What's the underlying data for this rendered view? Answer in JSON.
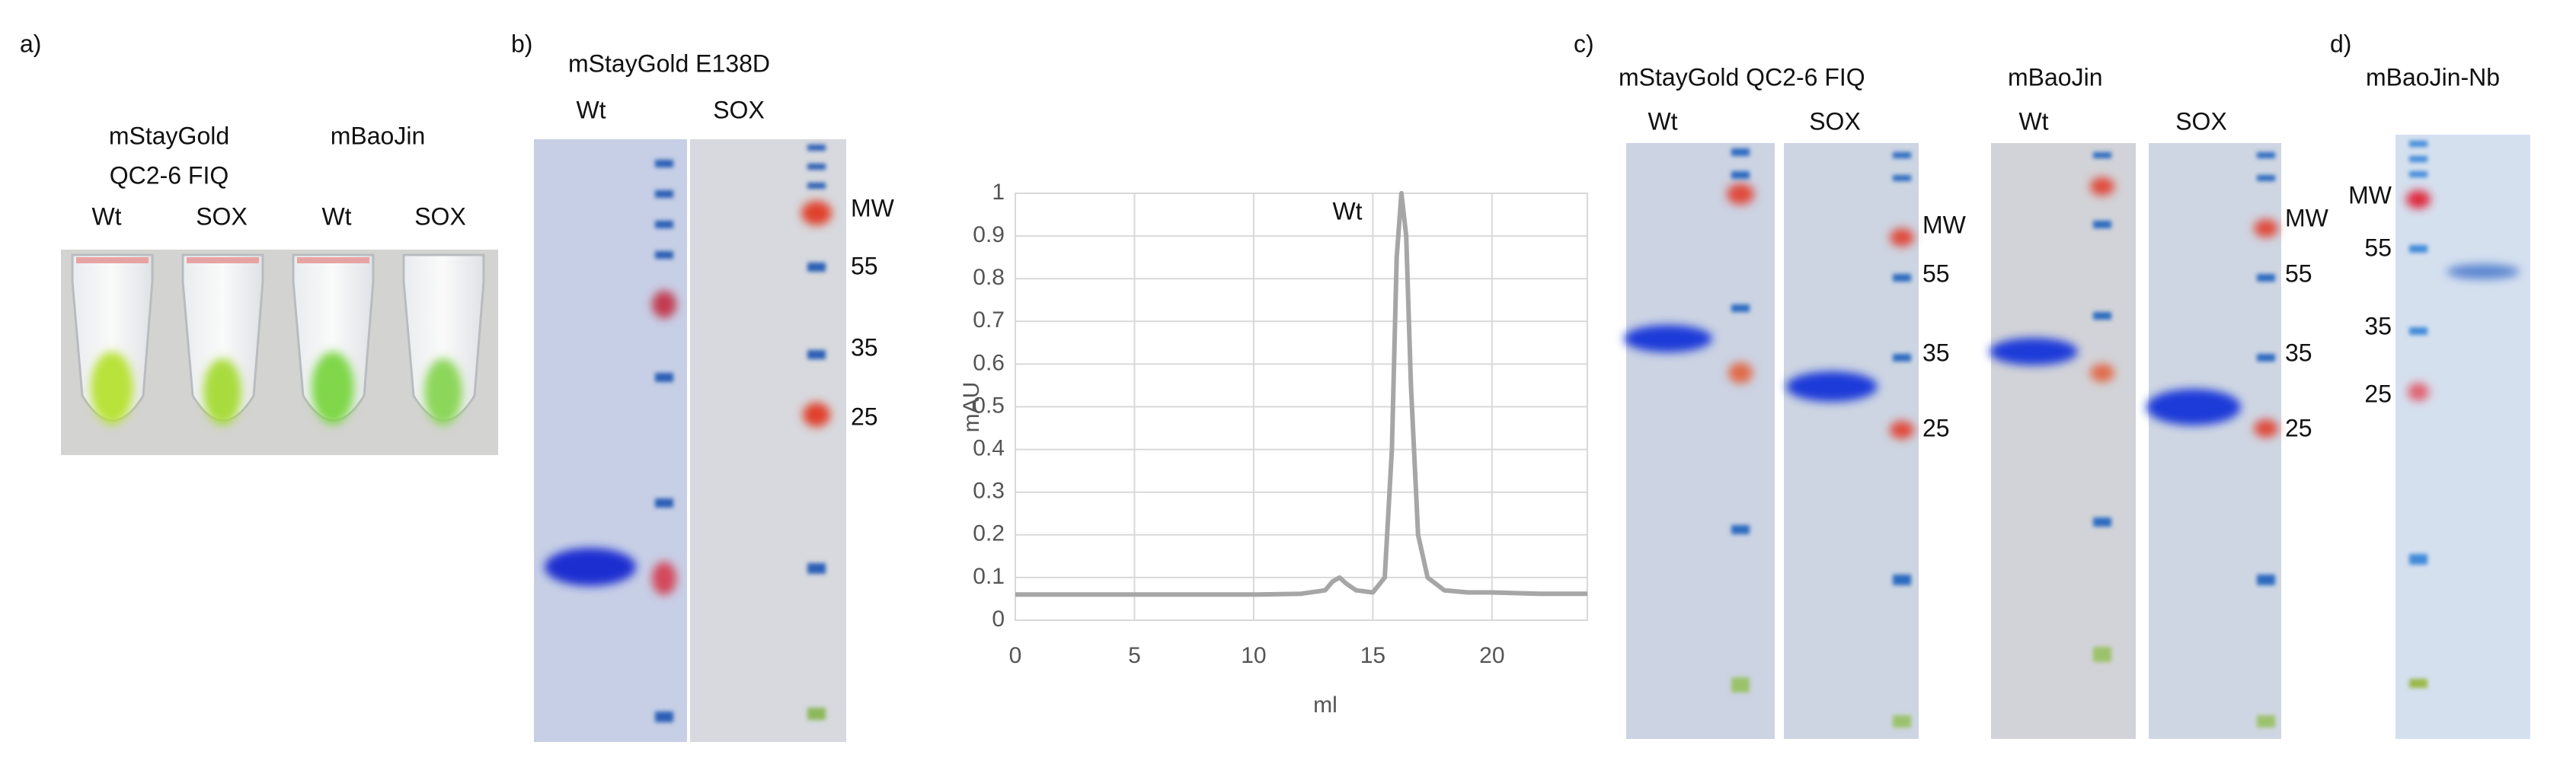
{
  "panel_a": {
    "label": "a)",
    "groups": [
      {
        "name_lines": [
          "mStayGold",
          "QC2-6 FIQ"
        ],
        "lanes": [
          "Wt",
          "SOX"
        ]
      },
      {
        "name_lines": [
          "mBaoJin"
        ],
        "lanes": [
          "Wt",
          "SOX"
        ]
      }
    ]
  },
  "panel_b": {
    "label": "b)",
    "title": "mStayGold E138D",
    "lanes": [
      "Wt",
      "SOX"
    ],
    "markers": [
      "MW",
      "55",
      "35",
      "25"
    ]
  },
  "panel_c": {
    "label": "c)",
    "gels": [
      {
        "title": "mStayGold QC2-6 FIQ",
        "lanes": [
          "Wt",
          "SOX"
        ],
        "markers": [
          "MW",
          "55",
          "35",
          "25"
        ]
      },
      {
        "title": "mBaoJin",
        "lanes": [
          "Wt",
          "SOX"
        ],
        "markers": [
          "MW",
          "55",
          "35",
          "25"
        ]
      }
    ]
  },
  "panel_d": {
    "label": "d)",
    "title": "mBaoJin-Nb",
    "markers": [
      "MW",
      "55",
      "35",
      "25"
    ]
  },
  "chart_data": {
    "type": "line",
    "x_label": "ml",
    "y_label": "mAU",
    "annotation": "Wt",
    "color": "#a6a6a6",
    "grid": true,
    "x": [
      0,
      2,
      4,
      6,
      8,
      10,
      12,
      13,
      13.3,
      13.6,
      13.9,
      14.3,
      15,
      15.5,
      15.8,
      16,
      16.2,
      16.4,
      16.6,
      16.9,
      17.3,
      18,
      19,
      20,
      22,
      24
    ],
    "values": [
      0.06,
      0.06,
      0.06,
      0.06,
      0.06,
      0.06,
      0.062,
      0.07,
      0.09,
      0.1,
      0.085,
      0.07,
      0.065,
      0.1,
      0.4,
      0.85,
      1.0,
      0.9,
      0.55,
      0.2,
      0.1,
      0.07,
      0.065,
      0.065,
      0.062,
      0.062
    ],
    "xlim": [
      0,
      24
    ],
    "xticks": [
      0,
      5,
      10,
      15,
      20
    ],
    "ylim": [
      0,
      1
    ],
    "yticks": [
      0,
      0.1,
      0.2,
      0.3,
      0.4,
      0.5,
      0.6,
      0.7,
      0.8,
      0.9,
      1
    ]
  }
}
